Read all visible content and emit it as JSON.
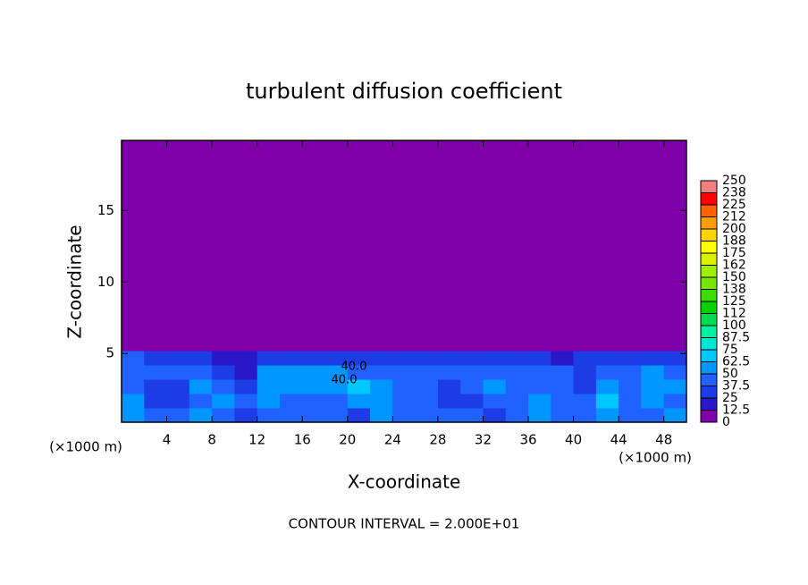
{
  "chart_data": {
    "type": "contour",
    "title": "turbulent diffusion coefficient",
    "x_label": "X-coordinate",
    "y_label": "Z-coordinate",
    "x_unit_left": "(×1000 m)",
    "x_unit_right": "(×1000 m)",
    "footer": "CONTOUR INTERVAL = 2.000E+01",
    "annotations": [
      "40.0",
      "40.0"
    ],
    "xlim": [
      0,
      50
    ],
    "ylim": [
      0.2,
      19.9
    ],
    "xticks": [
      4,
      8,
      12,
      16,
      20,
      24,
      28,
      32,
      36,
      40,
      44,
      48
    ],
    "yticks": [
      5,
      10,
      15
    ],
    "x_edges": [
      0,
      2,
      4,
      6,
      8,
      10,
      12,
      14,
      16,
      18,
      20,
      22,
      24,
      26,
      28,
      30,
      32,
      34,
      36,
      38,
      40,
      42,
      44,
      46,
      48,
      50
    ],
    "y_edges": [
      0.2,
      1.2,
      2.2,
      3.2,
      4.2,
      5.2,
      19.9
    ],
    "values": [
      [
        55,
        40,
        45,
        55,
        40,
        30,
        45,
        40,
        45,
        40,
        35,
        55,
        45,
        40,
        45,
        40,
        35,
        45,
        55,
        40,
        45,
        50,
        40,
        45,
        55
      ],
      [
        50,
        35,
        35,
        40,
        55,
        40,
        50,
        45,
        45,
        45,
        60,
        50,
        40,
        45,
        35,
        35,
        40,
        45,
        50,
        45,
        40,
        65,
        45,
        50,
        45
      ],
      [
        45,
        35,
        35,
        50,
        45,
        30,
        55,
        50,
        55,
        55,
        65,
        50,
        45,
        40,
        35,
        40,
        55,
        45,
        45,
        45,
        35,
        55,
        45,
        55,
        50
      ],
      [
        45,
        40,
        40,
        45,
        30,
        20,
        50,
        55,
        55,
        50,
        45,
        45,
        40,
        40,
        40,
        45,
        45,
        45,
        40,
        40,
        35,
        40,
        45,
        50,
        40
      ],
      [
        40,
        25,
        30,
        30,
        20,
        15,
        35,
        30,
        30,
        30,
        35,
        30,
        35,
        30,
        25,
        25,
        30,
        30,
        25,
        20,
        25,
        30,
        35,
        30,
        35
      ],
      [
        0,
        0,
        0,
        0,
        0,
        0,
        0,
        0,
        0,
        0,
        0,
        0,
        0,
        0,
        0,
        0,
        0,
        0,
        0,
        0,
        0,
        0,
        0,
        0,
        0
      ]
    ],
    "levels": [
      0,
      12.5,
      25,
      37.5,
      50,
      62.5,
      75,
      87.5,
      100,
      112,
      125,
      138,
      150,
      162,
      175,
      188,
      200,
      212,
      225,
      238,
      250
    ],
    "colors": [
      "#7f00a8",
      "#2a18c8",
      "#1e3ce6",
      "#2062ff",
      "#0096ff",
      "#00c8ff",
      "#00e6d2",
      "#00f0a0",
      "#00dc50",
      "#00d200",
      "#3cdc00",
      "#78e600",
      "#a0f000",
      "#dcf000",
      "#ffff00",
      "#ffd200",
      "#ffa000",
      "#ff6400",
      "#ff0000",
      "#f08080"
    ]
  }
}
